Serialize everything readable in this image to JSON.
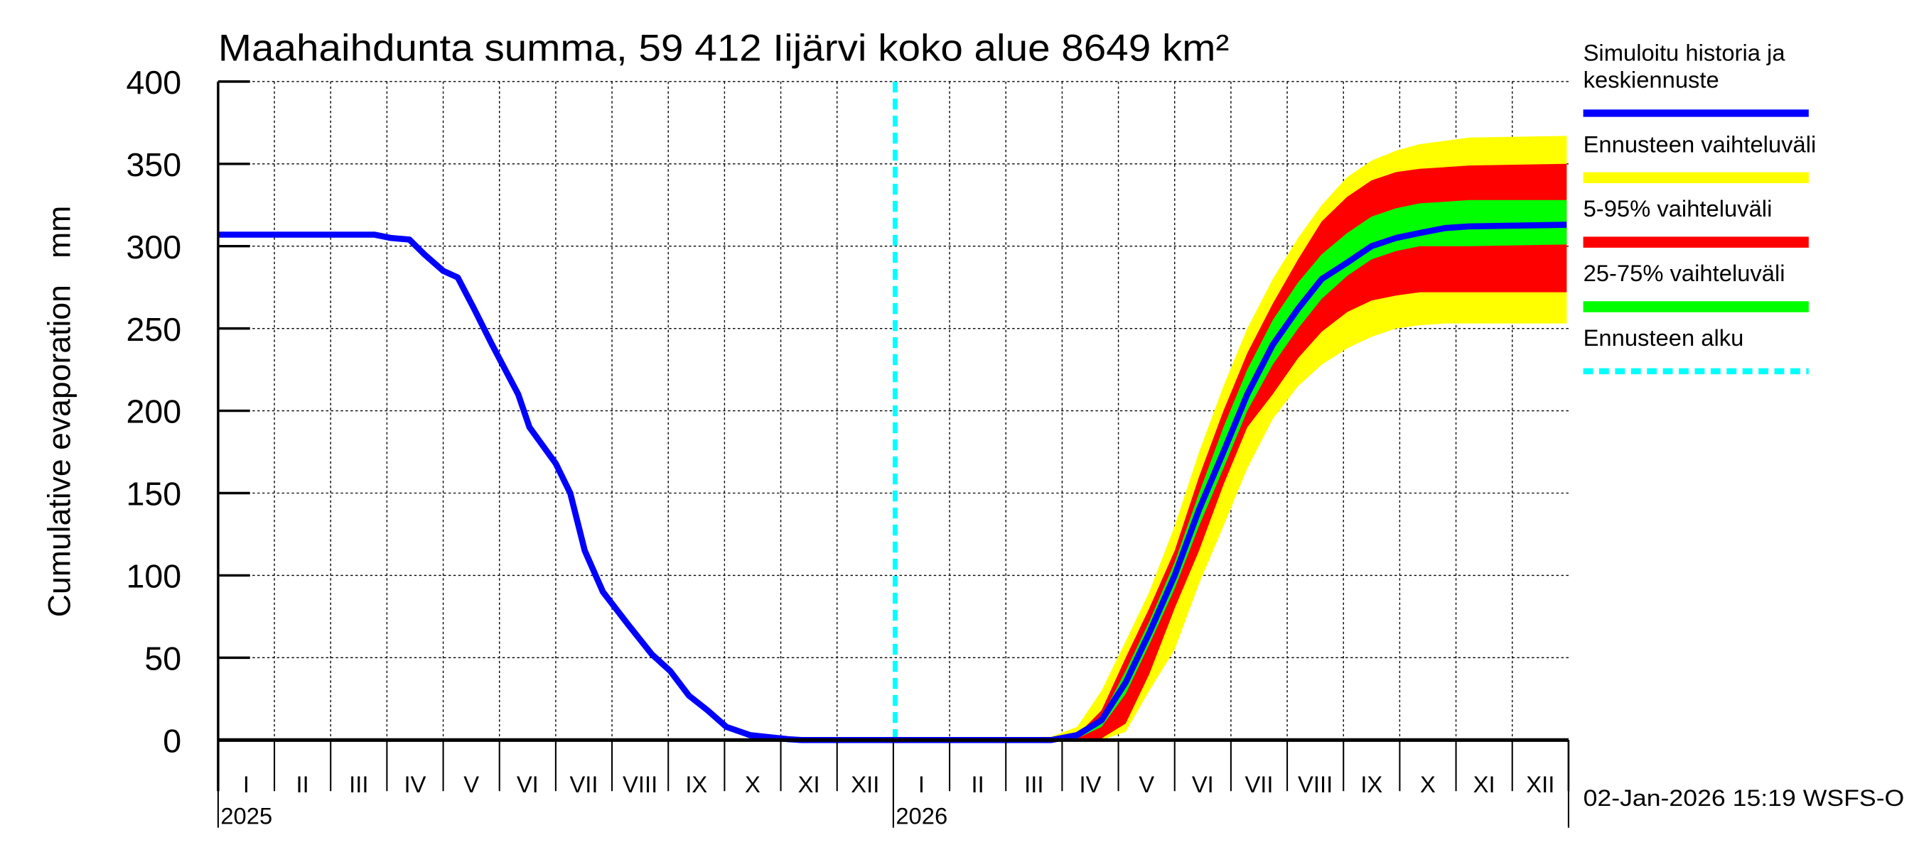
{
  "chart_data": {
    "type": "area",
    "title": "Maahaihdunta summa, 59 412 Iijärvi koko alue 8649 km²",
    "ylabel": "Cumulative evaporation   mm",
    "xlabel": "",
    "ylim": [
      0,
      400
    ],
    "yticks": [
      0,
      50,
      100,
      150,
      200,
      250,
      300,
      350,
      400
    ],
    "xlim": [
      "2025-01-01",
      "2027-01-01"
    ],
    "month_labels": [
      "I",
      "II",
      "III",
      "IV",
      "V",
      "VI",
      "VII",
      "VIII",
      "IX",
      "X",
      "XI",
      "XII",
      "I",
      "II",
      "III",
      "IV",
      "V",
      "VI",
      "VII",
      "VIII",
      "IX",
      "X",
      "XI",
      "XII"
    ],
    "year_labels": [
      "2025",
      "2026"
    ],
    "grid": true,
    "legend_placement": "right",
    "forecast_start": "2026-01-02",
    "timestamp": "02-Jan-2026 15:19 WSFS-O",
    "legend": [
      {
        "label": "Simuloitu historia ja keskiennuste",
        "lines": [
          "Simuloitu historia ja",
          "keskiennuste"
        ],
        "color": "#0000ff",
        "style": "line"
      },
      {
        "label": "Ennusteen vaihteluväli",
        "lines": [
          "Ennusteen vaihteluväli"
        ],
        "color": "#ffff00",
        "style": "band"
      },
      {
        "label": "5-95% vaihteluväli",
        "lines": [
          "5-95% vaihteluväli"
        ],
        "color": "#ff0000",
        "style": "band"
      },
      {
        "label": "25-75% vaihteluväli",
        "lines": [
          "25-75% vaihteluväli"
        ],
        "color": "#00ff00",
        "style": "band"
      },
      {
        "label": "Ennusteen alku",
        "lines": [
          "Ennusteen alku"
        ],
        "color": "#00ffff",
        "style": "dashed"
      }
    ],
    "history": {
      "x": [
        "2025-01-01",
        "2025-03-25",
        "2025-04-03",
        "2025-04-13",
        "2025-04-21",
        "2025-05-01",
        "2025-05-09",
        "2025-05-18",
        "2025-05-28",
        "2025-06-11",
        "2025-06-17",
        "2025-07-01",
        "2025-07-09",
        "2025-07-17",
        "2025-07-27",
        "2025-08-10",
        "2025-08-23",
        "2025-09-02",
        "2025-09-12",
        "2025-09-22",
        "2025-10-02",
        "2025-10-15",
        "2025-11-05",
        "2025-11-12",
        "2026-01-02"
      ],
      "y": [
        307,
        307,
        305,
        304,
        295,
        285,
        281,
        262,
        240,
        210,
        190,
        168,
        150,
        115,
        90,
        70,
        52,
        42,
        27,
        18,
        8,
        3,
        0.5,
        0,
        0
      ]
    },
    "forecast": {
      "x": [
        "2026-01-02",
        "2026-03-26",
        "2026-04-09",
        "2026-04-22",
        "2026-05-05",
        "2026-05-18",
        "2026-06-01",
        "2026-06-14",
        "2026-06-27",
        "2026-07-10",
        "2026-07-24",
        "2026-08-07",
        "2026-08-20",
        "2026-09-03",
        "2026-09-16",
        "2026-09-29",
        "2026-10-12",
        "2026-10-26",
        "2026-11-08",
        "2026-12-31"
      ],
      "median": [
        0,
        0,
        3,
        12,
        35,
        65,
        100,
        140,
        175,
        210,
        240,
        262,
        280,
        290,
        300,
        305,
        308,
        311,
        312,
        313
      ],
      "range_min": [
        0,
        0,
        0,
        0,
        5,
        30,
        55,
        95,
        130,
        165,
        195,
        215,
        228,
        238,
        245,
        250,
        252,
        253,
        253,
        253
      ],
      "range_max": [
        0,
        2,
        8,
        30,
        60,
        90,
        130,
        175,
        215,
        250,
        280,
        305,
        325,
        342,
        352,
        358,
        362,
        364,
        366,
        367
      ],
      "p5": [
        0,
        0,
        0,
        1,
        10,
        40,
        80,
        115,
        155,
        190,
        210,
        232,
        248,
        260,
        267,
        270,
        272,
        272,
        272,
        272
      ],
      "p95": [
        0,
        0,
        3,
        18,
        50,
        80,
        115,
        160,
        200,
        235,
        265,
        292,
        315,
        330,
        340,
        345,
        347,
        348,
        349,
        350
      ],
      "p25": [
        0,
        0,
        1,
        8,
        28,
        58,
        92,
        130,
        165,
        200,
        228,
        250,
        268,
        282,
        292,
        297,
        300,
        300,
        300,
        301
      ],
      "p75": [
        0,
        0,
        2,
        14,
        42,
        72,
        108,
        150,
        190,
        225,
        255,
        278,
        295,
        308,
        318,
        323,
        326,
        327,
        328,
        328
      ]
    }
  }
}
